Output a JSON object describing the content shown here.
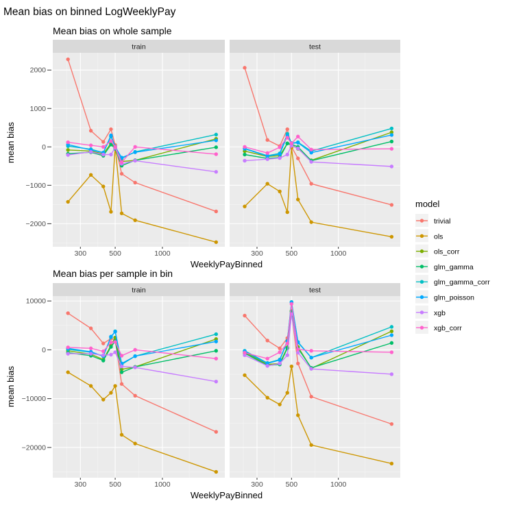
{
  "title": "Mean bias on binned LogWeeklyPay",
  "legend_title": "model",
  "colors": {
    "trivial": "#F8766D",
    "ols": "#CD9600",
    "ols_corr": "#7CAE00",
    "glm_gamma": "#00BE67",
    "glm_gamma_corr": "#00BFC4",
    "glm_poisson": "#00A9FF",
    "xgb": "#C77CFF",
    "xgb_corr": "#FF61CC"
  },
  "chart_data": [
    {
      "type": "line",
      "title": "Mean bias on whole sample",
      "xlabel": "WeeklyPayBinned",
      "ylabel": "mean bias",
      "x_scale": "log",
      "x_ticks": [
        300,
        500,
        1000
      ],
      "x_tick_labels": [
        "300",
        "500",
        "1000"
      ],
      "xlim": [
        200,
        2500
      ],
      "ylim": [
        -2600,
        2450
      ],
      "y_ticks": [
        2000,
        1000,
        0,
        -1000,
        -2000
      ],
      "y_tick_labels": [
        "2000",
        "1000",
        "0",
        "−1000",
        "−2000"
      ],
      "x": [
        250,
        350,
        420,
        470,
        500,
        550,
        670,
        2200
      ],
      "facets": [
        {
          "label": "train",
          "series": [
            {
              "name": "trivial",
              "values": [
                2280,
                420,
                130,
                460,
                50,
                -700,
                -930,
                -1680
              ]
            },
            {
              "name": "ols",
              "values": [
                -1430,
                -730,
                -1030,
                -1690,
                0,
                -1730,
                -1910,
                -2480
              ]
            },
            {
              "name": "ols_corr",
              "values": [
                -80,
                -110,
                -180,
                90,
                -20,
                -380,
                -350,
                210
              ]
            },
            {
              "name": "glm_gamma",
              "values": [
                -180,
                -140,
                -230,
                60,
                -50,
                -490,
                -350,
                -10
              ]
            },
            {
              "name": "glm_gamma_corr",
              "values": [
                20,
                -60,
                -150,
                270,
                10,
                -300,
                -130,
                320
              ]
            },
            {
              "name": "glm_poisson",
              "values": [
                60,
                -80,
                -150,
                300,
                0,
                -280,
                -140,
                170
              ]
            },
            {
              "name": "xgb",
              "values": [
                -210,
                -130,
                -200,
                -200,
                -20,
                -440,
                -360,
                -650
              ]
            },
            {
              "name": "xgb_corr",
              "values": [
                120,
                40,
                0,
                150,
                0,
                -400,
                0,
                -190
              ]
            }
          ]
        },
        {
          "label": "test",
          "series": [
            {
              "name": "trivial",
              "values": [
                2060,
                180,
                20,
                460,
                0,
                -300,
                -960,
                -1510
              ]
            },
            {
              "name": "ols",
              "values": [
                -1550,
                -960,
                -1160,
                -1700,
                -20,
                -1370,
                -1960,
                -2340
              ]
            },
            {
              "name": "ols_corr",
              "values": [
                -110,
                -250,
                -230,
                90,
                50,
                -50,
                -350,
                380
              ]
            },
            {
              "name": "glm_gamma",
              "values": [
                -200,
                -300,
                -280,
                90,
                70,
                0,
                -360,
                140
              ]
            },
            {
              "name": "glm_gamma_corr",
              "values": [
                -40,
                -230,
                -170,
                340,
                100,
                120,
                -110,
                480
              ]
            },
            {
              "name": "glm_poisson",
              "values": [
                -50,
                -240,
                -190,
                290,
                90,
                110,
                -150,
                310
              ]
            },
            {
              "name": "xgb",
              "values": [
                -360,
                -320,
                -290,
                -200,
                30,
                -40,
                -390,
                -510
              ]
            },
            {
              "name": "xgb_corr",
              "values": [
                0,
                -160,
                -10,
                240,
                90,
                270,
                -70,
                -50
              ]
            }
          ]
        }
      ]
    },
    {
      "type": "line",
      "title": "Mean bias per sample in bin",
      "xlabel": "WeeklyPayBinned",
      "ylabel": "mean bias",
      "x_scale": "log",
      "x_ticks": [
        300,
        500,
        1000
      ],
      "x_tick_labels": [
        "300",
        "500",
        "1000"
      ],
      "xlim": [
        200,
        2500
      ],
      "ylim": [
        -26200,
        11000
      ],
      "y_ticks": [
        10000,
        0,
        -10000,
        -20000
      ],
      "y_tick_labels": [
        "10000",
        "0",
        "−10000",
        "−20000"
      ],
      "x": [
        250,
        350,
        420,
        470,
        500,
        550,
        670,
        2200
      ],
      "facets": [
        {
          "label": "train",
          "series": [
            {
              "name": "trivial",
              "values": [
                7500,
                4400,
                1300,
                2300,
                2000,
                -7000,
                -9400,
                -16800
              ]
            },
            {
              "name": "ols",
              "values": [
                -4600,
                -7400,
                -10200,
                -8800,
                -7400,
                -17400,
                -19200,
                -25000
              ]
            },
            {
              "name": "ols_corr",
              "values": [
                -200,
                -900,
                -2000,
                900,
                2500,
                -4000,
                -3500,
                2200
              ]
            },
            {
              "name": "glm_gamma",
              "values": [
                -600,
                -1200,
                -2200,
                600,
                1800,
                -4600,
                -3500,
                -200
              ]
            },
            {
              "name": "glm_gamma_corr",
              "values": [
                100,
                -500,
                -1300,
                2600,
                3800,
                -3000,
                -1300,
                3200
              ]
            },
            {
              "name": "glm_poisson",
              "values": [
                300,
                -400,
                -1300,
                2700,
                3700,
                -2800,
                -1300,
                1700
              ]
            },
            {
              "name": "xgb",
              "values": [
                -800,
                -800,
                -1100,
                -1000,
                -500,
                -3400,
                -3600,
                -6500
              ]
            },
            {
              "name": "xgb_corr",
              "values": [
                500,
                300,
                -300,
                1500,
                1600,
                -1200,
                0,
                -1800
              ]
            }
          ]
        },
        {
          "label": "test",
          "series": [
            {
              "name": "trivial",
              "values": [
                7000,
                1900,
                300,
                2400,
                7500,
                -2800,
                -9600,
                -15200
              ]
            },
            {
              "name": "ols",
              "values": [
                -5200,
                -9800,
                -11200,
                -8800,
                -3400,
                -13400,
                -19500,
                -23300
              ]
            },
            {
              "name": "ols_corr",
              "values": [
                -500,
                -3000,
                -2800,
                500,
                8000,
                600,
                -3800,
                3800
              ]
            },
            {
              "name": "glm_gamma",
              "values": [
                -700,
                -3200,
                -3000,
                300,
                7800,
                300,
                -3700,
                1400
              ]
            },
            {
              "name": "glm_gamma_corr",
              "values": [
                -200,
                -2700,
                -2000,
                1800,
                9800,
                1600,
                -1600,
                4700
              ]
            },
            {
              "name": "glm_poisson",
              "values": [
                -300,
                -2800,
                -2100,
                1700,
                9700,
                1500,
                -1600,
                3000
              ]
            },
            {
              "name": "xgb",
              "values": [
                -1100,
                -3300,
                -2800,
                -1100,
                7300,
                -600,
                -3900,
                -5000
              ]
            },
            {
              "name": "xgb_corr",
              "values": [
                -600,
                -1800,
                -500,
                1300,
                9400,
                100,
                -200,
                -500
              ]
            }
          ]
        }
      ]
    }
  ]
}
